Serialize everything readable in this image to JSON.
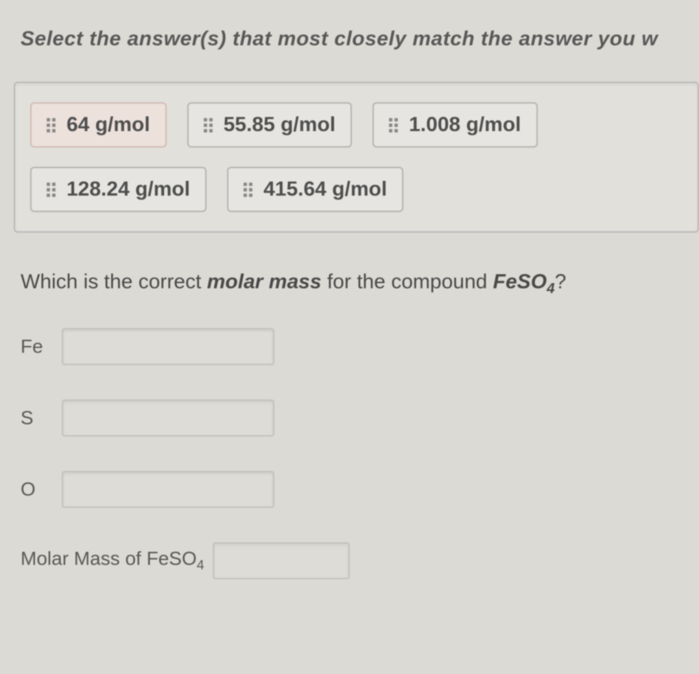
{
  "instruction": "Select the answer(s) that most closely match the answer you w",
  "options": {
    "row1": [
      {
        "label": "64 g/mol",
        "highlight": true
      },
      {
        "label": "55.85 g/mol",
        "highlight": false
      },
      {
        "label": "1.008 g/mol",
        "highlight": false
      }
    ],
    "row2": [
      {
        "label": "128.24 g/mol",
        "highlight": false
      },
      {
        "label": "415.64 g/mol",
        "highlight": false
      }
    ]
  },
  "question": {
    "prefix": "Which is the correct ",
    "bold1": "molar mass",
    "mid": " for the compound ",
    "compound": "FeSO",
    "subscript": "4",
    "suffix": "?"
  },
  "fields": {
    "fe": "Fe",
    "s": "S",
    "o": "O",
    "molar": "Molar Mass of FeSO",
    "molar_sub": "4"
  },
  "colors": {
    "page_bg": "#dcdad4",
    "box_bg": "#e9e8e3",
    "option_bg": "#efeee9",
    "option_border": "#b8b8b4",
    "highlight_bg": "#f6e9e4",
    "text": "#4a4a4a",
    "drop_border": "#c8c8c2"
  },
  "typography": {
    "instruction_fontsize": 30,
    "option_fontsize": 30,
    "question_fontsize": 30,
    "label_fontsize": 28
  }
}
